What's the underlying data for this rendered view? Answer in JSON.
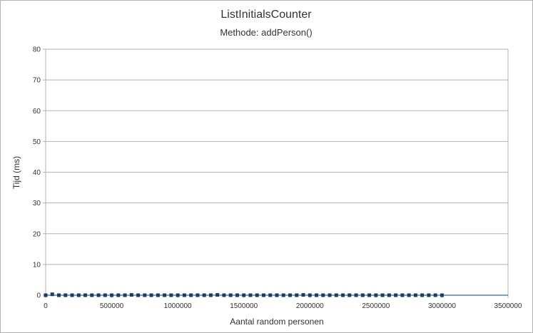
{
  "chart_data": {
    "type": "scatter",
    "title": "ListInitialsCounter",
    "subtitle": "Methode: addPerson()",
    "xlabel": "Aantal random personen",
    "ylabel": "Tijd (ms)",
    "xlim": [
      0,
      3500000
    ],
    "ylim": [
      0,
      80
    ],
    "xticks": [
      "0",
      "500000",
      "1000000",
      "1500000",
      "2000000",
      "2500000",
      "3000000",
      "3500000"
    ],
    "yticks": [
      "0",
      "10",
      "20",
      "30",
      "40",
      "50",
      "60",
      "70",
      "80"
    ],
    "grid": true,
    "legend": "none",
    "marker_color": "#1f3a5f",
    "line_color": "#004586",
    "series": [
      {
        "x": [
          0,
          50000,
          100000,
          150000,
          200000,
          250000,
          300000,
          350000,
          400000,
          450000,
          500000,
          550000,
          600000,
          650000,
          700000,
          750000,
          800000,
          850000,
          900000,
          950000,
          1000000,
          1050000,
          1100000,
          1150000,
          1200000,
          1250000,
          1300000,
          1350000,
          1400000,
          1450000,
          1500000,
          1550000,
          1600000,
          1650000,
          1700000,
          1750000,
          1800000,
          1850000,
          1900000,
          1950000,
          2000000,
          2050000,
          2100000,
          2150000,
          2200000,
          2250000,
          2300000,
          2350000,
          2400000,
          2450000,
          2500000,
          2550000,
          2600000,
          2650000,
          2700000,
          2750000,
          2800000,
          2850000,
          2900000,
          2950000,
          3000000
        ],
        "y": [
          0,
          0.3,
          0,
          0,
          0,
          0,
          0,
          0,
          0,
          0,
          0,
          0,
          0,
          0.1,
          0,
          0,
          0,
          0,
          0,
          0,
          0,
          0,
          0,
          0,
          0,
          0,
          0.1,
          0,
          0,
          0,
          0,
          0,
          0,
          0,
          0,
          0,
          0,
          0,
          0,
          0.1,
          0,
          0,
          0,
          0,
          0,
          0,
          0,
          0,
          0,
          0,
          0,
          0,
          0,
          0,
          0,
          0,
          0,
          0,
          0,
          0,
          0
        ]
      }
    ]
  }
}
